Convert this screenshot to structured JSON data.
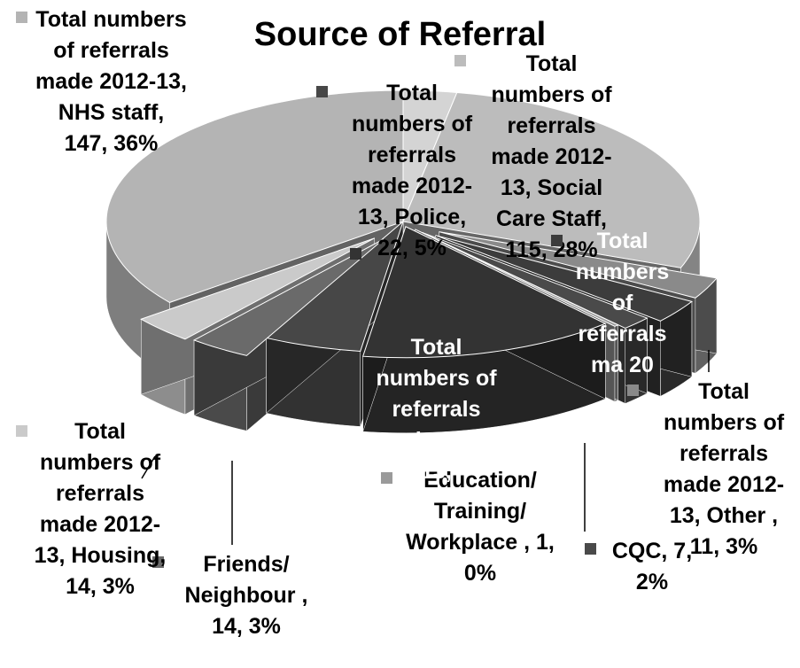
{
  "chart_data": {
    "type": "pie3d",
    "title": "Source of Referral",
    "series_name": "Total numbers of referrals made 2012-13",
    "categories": [
      null,
      "Social Care Staff",
      "Other",
      null,
      "CQC",
      "Education/ Training/ Workplace",
      null,
      "Police",
      "Friends/ Neighbour",
      "Housing",
      "NHS staff"
    ],
    "values": [
      12,
      115,
      11,
      12,
      7,
      1,
      58,
      22,
      14,
      14,
      147
    ],
    "labels": [
      null,
      "Total numbers of referrals made 2012-13, Social Care Staff, 115, 28%",
      "Total numbers of referrals made 2012-13, Other , 11, 3%",
      "Total numbers of referrals ma 20",
      "CQC, 7, 2%",
      "Education/ Training/ Workplace , 1, 0%",
      "Total numbers of referrals made 2012-13,",
      "Total numbers of referrals made 2012-13, Police, 22, 5%",
      "Friends/ Neighbour , 14, 3%",
      "Total numbers of referrals made 2012-13, Housing, 14, 3%",
      "Total numbers of referrals made 2012-13, NHS staff, 147, 36%"
    ],
    "colors": [
      "#d4d4d4",
      "#bcbcbc",
      "#8a8a8a",
      "#3c3c3c",
      "#4a4a4a",
      "#9a9a9a",
      "#333333",
      "#474747",
      "#6a6a6a",
      "#cacaca",
      "#b4b4b4"
    ]
  }
}
